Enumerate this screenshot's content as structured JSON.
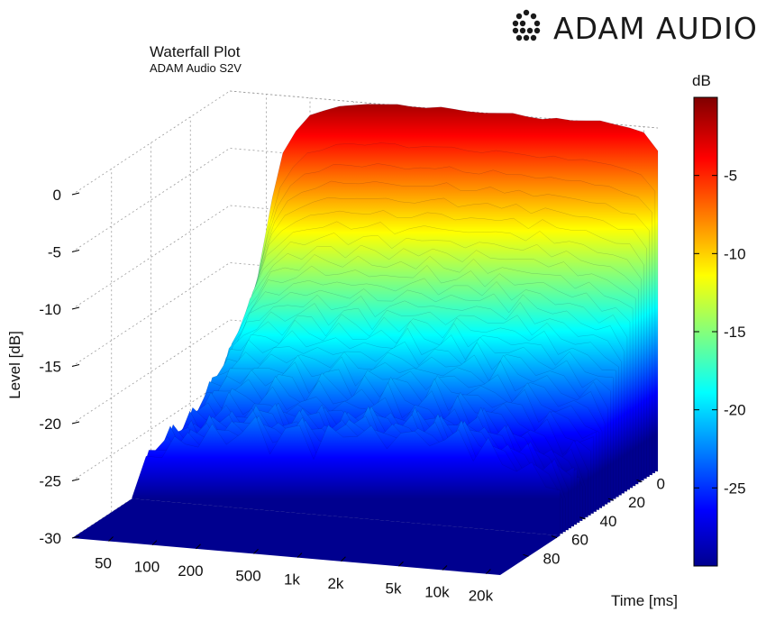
{
  "brand": {
    "name": "ADAM AUDIO",
    "logo_icon": "dotted-g-logo-icon"
  },
  "chart_data": {
    "type": "surface",
    "title": "Waterfall Plot",
    "subtitle": "ADAM Audio S2V",
    "zlabel": "Level [dB]",
    "ylabel": "Time [ms]",
    "xlabel": "",
    "colorbar_label": "dB",
    "colormap": "jet",
    "colormap_stops": [
      "#00008f",
      "#0000ff",
      "#00ffff",
      "#ffff00",
      "#ff0000",
      "#800000"
    ],
    "zlim": [
      -30,
      0
    ],
    "z_ticks": [
      0,
      -5,
      -10,
      -15,
      -20,
      -25,
      -30
    ],
    "z_tick_labels": [
      "0",
      "-5",
      "-10",
      "-15",
      "-20",
      "-25",
      "-30"
    ],
    "x_scale": "log",
    "x_ticks": [
      50,
      100,
      200,
      500,
      1000,
      2000,
      5000,
      10000,
      20000
    ],
    "x_tick_labels": [
      "50",
      "100",
      "200",
      "500",
      "1k",
      "2k",
      "5k",
      "10k",
      "20k"
    ],
    "y_ticks": [
      0,
      20,
      40,
      60,
      80
    ],
    "y_tick_labels": [
      "0",
      "20",
      "40",
      "60",
      "80"
    ],
    "colorbar_range": [
      -30,
      0
    ],
    "colorbar_ticks": [
      -5,
      -10,
      -15,
      -20,
      -25
    ],
    "colorbar_tick_labels": [
      "-5",
      "-10",
      "-15",
      "-20",
      "-25"
    ],
    "grid": true,
    "frequency_hz": [
      28,
      35,
      45,
      55,
      65,
      80,
      100,
      125,
      160,
      200,
      250,
      320,
      400,
      500,
      630,
      800,
      1000,
      1250,
      1600,
      2000,
      2500,
      3150,
      4000,
      5000,
      6300,
      8000,
      10000,
      12500,
      16000,
      20000,
      25000
    ],
    "initial_level_db": [
      -29,
      -24,
      -15,
      -9,
      -5,
      -3,
      -1.5,
      -1,
      -0.5,
      -0.3,
      -0.1,
      0,
      0.1,
      0,
      0,
      0.2,
      0.1,
      0,
      0,
      0.1,
      0.2,
      0,
      -0.1,
      0.1,
      0,
      0.1,
      0.2,
      0,
      -0.2,
      -0.5,
      -2
    ],
    "decay_floor_db": [
      -30,
      -27,
      -25,
      -25,
      -25,
      -24,
      -24,
      -24,
      -23,
      -23,
      -24,
      -23,
      -23,
      -24,
      -23,
      -23,
      -22,
      -23,
      -23,
      -22,
      -23,
      -22,
      -23,
      -22,
      -23,
      -23,
      -24,
      -24,
      -25,
      -25,
      -26
    ]
  }
}
